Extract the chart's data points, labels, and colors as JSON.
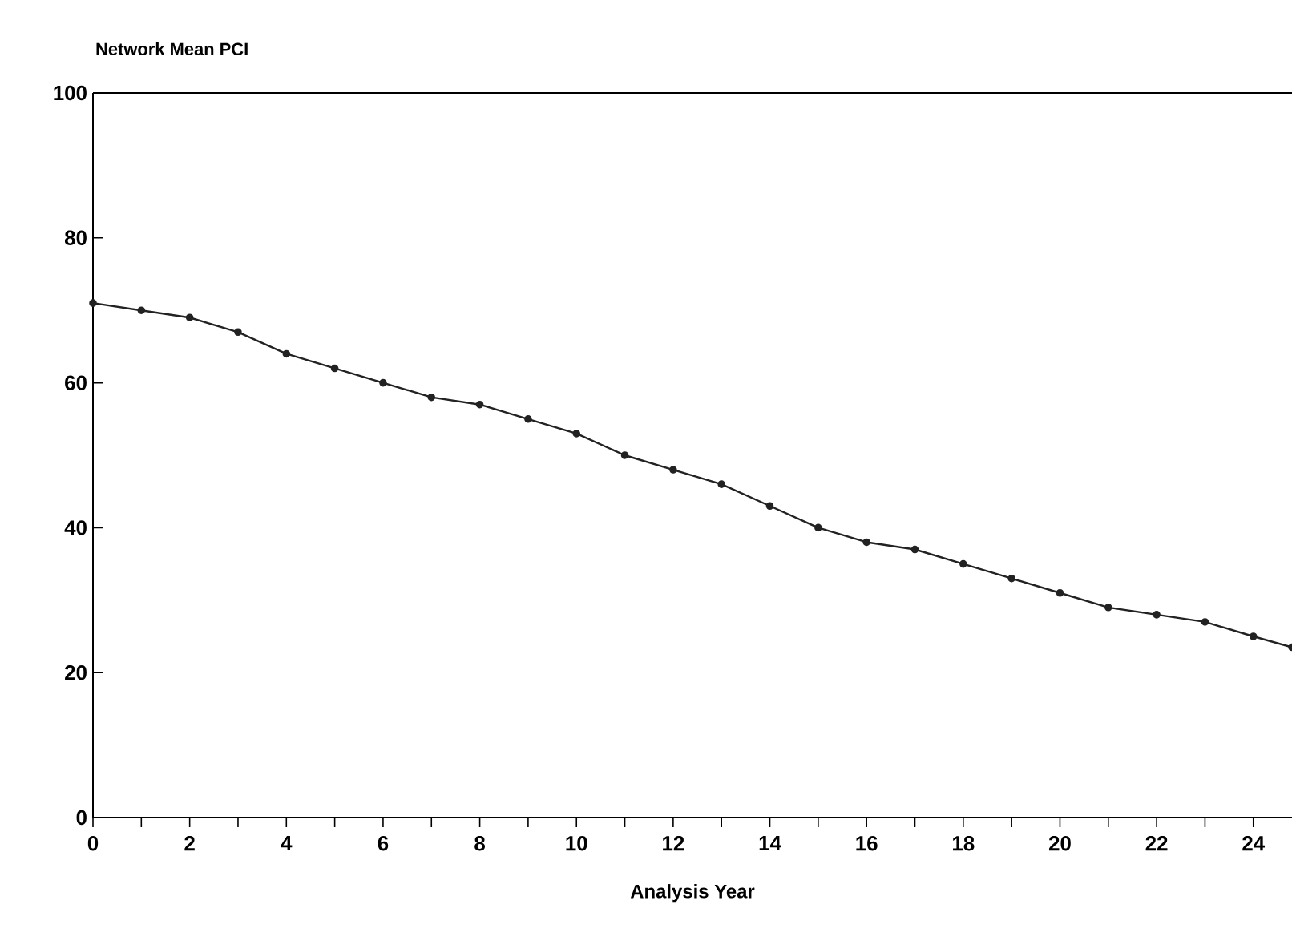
{
  "chart_data": {
    "type": "line",
    "title": "Network Mean PCI",
    "xlabel": "Analysis Year",
    "x": [
      0,
      1,
      2,
      3,
      4,
      5,
      6,
      7,
      8,
      9,
      10,
      11,
      12,
      13,
      14,
      15,
      16,
      17,
      18,
      19,
      20,
      21,
      22,
      23,
      24,
      24.8
    ],
    "series": [
      {
        "color": "#222222",
        "values": [
          71,
          70,
          69,
          67,
          64,
          62,
          60,
          58,
          57,
          55,
          53,
          50,
          48,
          46,
          43,
          40,
          38,
          37,
          35,
          33,
          31,
          29,
          28,
          27,
          25,
          23.5
        ]
      }
    ],
    "xlim": [
      0,
      24.8
    ],
    "ylim": [
      0,
      100
    ],
    "xticks": [
      0,
      {
        "value": 1,
        "label": null
      },
      2,
      {
        "value": 3,
        "label": null
      },
      4,
      {
        "value": 5,
        "label": null
      },
      6,
      {
        "value": 7,
        "label": null
      },
      8,
      {
        "value": 9,
        "label": null
      },
      10,
      {
        "value": 11,
        "label": null
      },
      12,
      {
        "value": 13,
        "label": null
      },
      14,
      {
        "value": 15,
        "label": null
      },
      16,
      {
        "value": 17,
        "label": null
      },
      18,
      {
        "value": 19,
        "label": null
      },
      20,
      {
        "value": 21,
        "label": null
      },
      22,
      {
        "value": 23,
        "label": null
      },
      24
    ],
    "yticks": [
      0,
      20,
      40,
      60,
      80,
      100
    ],
    "marker": "circle",
    "line_style": "solid",
    "grid": false
  }
}
